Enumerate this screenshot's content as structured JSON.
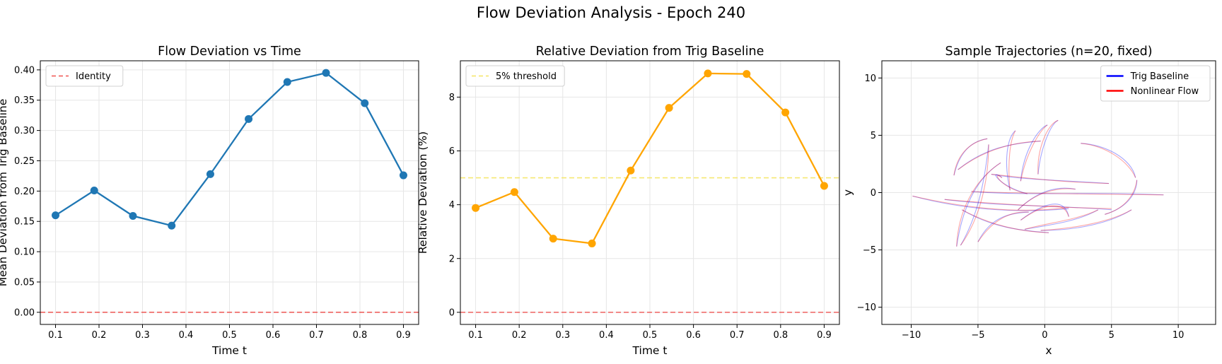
{
  "figure": {
    "suptitle": "Flow Deviation Analysis - Epoch 240"
  },
  "chart_data": [
    {
      "type": "line",
      "title": "Flow Deviation vs Time",
      "xlabel": "Time t",
      "ylabel": "Mean Deviation from Trig Baseline",
      "xlim": [
        0.065,
        0.935
      ],
      "ylim": [
        -0.02,
        0.415
      ],
      "xticks": [
        0.1,
        0.2,
        0.3,
        0.4,
        0.5,
        0.6,
        0.7,
        0.8,
        0.9
      ],
      "xtick_labels": [
        "0.1",
        "0.2",
        "0.3",
        "0.4",
        "0.5",
        "0.6",
        "0.7",
        "0.8",
        "0.9"
      ],
      "yticks": [
        0.0,
        0.05,
        0.1,
        0.15,
        0.2,
        0.25,
        0.3,
        0.35,
        0.4
      ],
      "ytick_labels": [
        "0.00",
        "0.05",
        "0.10",
        "0.15",
        "0.20",
        "0.25",
        "0.30",
        "0.35",
        "0.40"
      ],
      "grid": true,
      "legend": {
        "position": "upper-left",
        "entries": [
          {
            "label": "Identity",
            "style": "dashed",
            "color": "#ef5350"
          }
        ]
      },
      "series": [
        {
          "color": "#1f77b4",
          "marker": "circle",
          "x": [
            0.1,
            0.189,
            0.278,
            0.367,
            0.456,
            0.544,
            0.633,
            0.722,
            0.811,
            0.9
          ],
          "y": [
            0.16,
            0.201,
            0.159,
            0.143,
            0.228,
            0.319,
            0.38,
            0.395,
            0.345,
            0.226
          ]
        }
      ],
      "hlines": [
        {
          "y": 0,
          "color": "#ef5350",
          "style": "dashed"
        }
      ]
    },
    {
      "type": "line",
      "title": "Relative Deviation from Trig Baseline",
      "xlabel": "Time t",
      "ylabel": "Relative Deviation (%)",
      "xlim": [
        0.065,
        0.935
      ],
      "ylim": [
        -0.45,
        9.35
      ],
      "xticks": [
        0.1,
        0.2,
        0.3,
        0.4,
        0.5,
        0.6,
        0.7,
        0.8,
        0.9
      ],
      "xtick_labels": [
        "0.1",
        "0.2",
        "0.3",
        "0.4",
        "0.5",
        "0.6",
        "0.7",
        "0.8",
        "0.9"
      ],
      "yticks": [
        0,
        2,
        4,
        6,
        8
      ],
      "ytick_labels": [
        "0",
        "2",
        "4",
        "6",
        "8"
      ],
      "grid": true,
      "legend": {
        "position": "upper-left",
        "entries": [
          {
            "label": "5% threshold",
            "style": "dashed",
            "color": "#f5e663"
          }
        ]
      },
      "series": [
        {
          "color": "#ffa500",
          "marker": "circle",
          "x": [
            0.1,
            0.189,
            0.278,
            0.367,
            0.456,
            0.544,
            0.633,
            0.722,
            0.811,
            0.9
          ],
          "y": [
            3.88,
            4.47,
            2.74,
            2.56,
            5.27,
            7.6,
            8.88,
            8.86,
            7.43,
            4.7
          ]
        }
      ],
      "hlines": [
        {
          "y": 5,
          "color": "#f5e663",
          "style": "dashed"
        },
        {
          "y": 0,
          "color": "#ef5350",
          "style": "dashed"
        }
      ]
    },
    {
      "type": "line",
      "title": "Sample Trajectories (n=20, fixed)",
      "xlabel": "x",
      "ylabel": "y",
      "xlim": [
        -12.2,
        12.8
      ],
      "ylim": [
        -11.5,
        11.5
      ],
      "xticks": [
        -10,
        -5,
        0,
        5,
        10
      ],
      "xtick_labels": [
        "−10",
        "−5",
        "0",
        "5",
        "10"
      ],
      "yticks": [
        -10,
        -5,
        0,
        5,
        10
      ],
      "ytick_labels": [
        "−10",
        "−5",
        "0",
        "5",
        "10"
      ],
      "grid": true,
      "legend": {
        "position": "upper-right",
        "entries": [
          {
            "label": "Trig Baseline",
            "style": "solid",
            "color": "#0000ff"
          },
          {
            "label": "Nonlinear Flow",
            "style": "solid",
            "color": "#ff0000"
          }
        ]
      },
      "trajectories": [
        {
          "trig": [
            [
              -9.9,
              -0.3
            ],
            [
              -6,
              -1.5
            ],
            [
              -2,
              -1.8
            ],
            [
              1.8,
              -1.4
            ]
          ],
          "flow": [
            [
              -9.9,
              -0.3
            ],
            [
              -6.1,
              -1.3
            ],
            [
              -2.1,
              -1.9
            ],
            [
              1.8,
              -1.3
            ]
          ]
        },
        {
          "trig": [
            [
              -7.5,
              -0.6
            ],
            [
              -3.5,
              -1.2
            ],
            [
              1,
              -1.1
            ],
            [
              5,
              -1.5
            ]
          ],
          "flow": [
            [
              -7.5,
              -0.6
            ],
            [
              -3.6,
              -1.0
            ],
            [
              1,
              -1.3
            ],
            [
              5,
              -1.4
            ]
          ]
        },
        {
          "trig": [
            [
              -5.5,
              0.1
            ],
            [
              -1.5,
              -0.3
            ],
            [
              3,
              0.1
            ],
            [
              8.9,
              -0.2
            ]
          ],
          "flow": [
            [
              -5.5,
              0.1
            ],
            [
              -1.6,
              -0.1
            ],
            [
              3,
              -0.1
            ],
            [
              8.9,
              -0.2
            ]
          ]
        },
        {
          "trig": [
            [
              -6.6,
              -4.7
            ],
            [
              -6.2,
              -1.5
            ],
            [
              -5.2,
              1.2
            ],
            [
              -3.3,
              2.6
            ]
          ],
          "flow": [
            [
              -6.6,
              -4.7
            ],
            [
              -6.5,
              -1.8
            ],
            [
              -5.4,
              1.0
            ],
            [
              -3.3,
              2.6
            ]
          ]
        },
        {
          "trig": [
            [
              -6.3,
              -4.6
            ],
            [
              -5,
              -2
            ],
            [
              -4.5,
              1
            ],
            [
              -4.2,
              4.2
            ]
          ],
          "flow": [
            [
              -6.3,
              -4.6
            ],
            [
              -4.8,
              -2.2
            ],
            [
              -4.2,
              1.2
            ],
            [
              -4.2,
              4.2
            ]
          ]
        },
        {
          "trig": [
            [
              -6.8,
              1.5
            ],
            [
              -6.4,
              3.5
            ],
            [
              -5.5,
              4.5
            ],
            [
              -4.3,
              4.7
            ]
          ],
          "flow": [
            [
              -6.8,
              1.5
            ],
            [
              -6.6,
              3.2
            ],
            [
              -5.7,
              4.4
            ],
            [
              -4.3,
              4.7
            ]
          ]
        },
        {
          "trig": [
            [
              -2.6,
              0.2
            ],
            [
              -3.1,
              2.8
            ],
            [
              -2.8,
              4.8
            ],
            [
              -2.2,
              5.4
            ]
          ],
          "flow": [
            [
              -2.6,
              0.2
            ],
            [
              -2.8,
              2.6
            ],
            [
              -2.6,
              4.6
            ],
            [
              -2.2,
              5.4
            ]
          ]
        },
        {
          "trig": [
            [
              -1.8,
              1
            ],
            [
              -1.6,
              3.6
            ],
            [
              -0.5,
              5.6
            ],
            [
              0.2,
              5.9
            ]
          ],
          "flow": [
            [
              -1.8,
              1
            ],
            [
              -1.4,
              3.4
            ],
            [
              -0.4,
              5.4
            ],
            [
              0.2,
              5.9
            ]
          ]
        },
        {
          "trig": [
            [
              -0.5,
              1.6
            ],
            [
              -0.3,
              4
            ],
            [
              0.5,
              6.1
            ],
            [
              1,
              6.3
            ]
          ],
          "flow": [
            [
              -0.5,
              1.6
            ],
            [
              -0.6,
              3.8
            ],
            [
              0.2,
              6.0
            ],
            [
              1,
              6.3
            ]
          ]
        },
        {
          "trig": [
            [
              -6.5,
              2.0
            ],
            [
              -4.5,
              3.9
            ],
            [
              -2.5,
              4.3
            ],
            [
              -0.3,
              4.5
            ]
          ],
          "flow": [
            [
              -6.5,
              2.0
            ],
            [
              -4.6,
              3.7
            ],
            [
              -2.5,
              4.4
            ],
            [
              -0.3,
              4.5
            ]
          ]
        },
        {
          "trig": [
            [
              2.7,
              4.3
            ],
            [
              4.5,
              4.2
            ],
            [
              6.5,
              3
            ],
            [
              6.8,
              1.3
            ]
          ],
          "flow": [
            [
              2.7,
              4.3
            ],
            [
              4.6,
              4.1
            ],
            [
              6.3,
              2.7
            ],
            [
              6.8,
              1.3
            ]
          ]
        },
        {
          "trig": [
            [
              4.5,
              -1.9
            ],
            [
              6.5,
              -1.2
            ],
            [
              6.9,
              0.3
            ],
            [
              6.9,
              1.1
            ]
          ],
          "flow": [
            [
              4.5,
              -1.9
            ],
            [
              6.3,
              -1.3
            ],
            [
              6.8,
              0.2
            ],
            [
              6.9,
              1.1
            ]
          ]
        },
        {
          "trig": [
            [
              -1.5,
              -3.2
            ],
            [
              0.5,
              -2.8
            ],
            [
              2.5,
              -2.5
            ],
            [
              4,
              -1.5
            ]
          ],
          "flow": [
            [
              -1.5,
              -3.2
            ],
            [
              0.4,
              -2.6
            ],
            [
              2.4,
              -2.4
            ],
            [
              4,
              -1.5
            ]
          ]
        },
        {
          "trig": [
            [
              -0.3,
              -3.3
            ],
            [
              2.5,
              -3.3
            ],
            [
              5,
              -2.6
            ],
            [
              6.5,
              -1.5
            ]
          ],
          "flow": [
            [
              -0.3,
              -3.3
            ],
            [
              2.5,
              -3.1
            ],
            [
              5,
              -2.5
            ],
            [
              6.5,
              -1.5
            ]
          ]
        },
        {
          "trig": [
            [
              -6.2,
              -1.5
            ],
            [
              -4,
              -3
            ],
            [
              -2,
              -3.3
            ],
            [
              0.3,
              -3.5
            ]
          ],
          "flow": [
            [
              -6.2,
              -1.5
            ],
            [
              -4.1,
              -2.8
            ],
            [
              -2,
              -3.4
            ],
            [
              0.3,
              -3.5
            ]
          ]
        },
        {
          "trig": [
            [
              -5,
              -4.3
            ],
            [
              -4,
              -2
            ],
            [
              -2.5,
              -1.8
            ],
            [
              -1.2,
              -1.7
            ]
          ],
          "flow": [
            [
              -5,
              -4.3
            ],
            [
              -3.8,
              -2.2
            ],
            [
              -2.4,
              -1.6
            ],
            [
              -1.2,
              -1.7
            ]
          ]
        },
        {
          "trig": [
            [
              -2,
              -1.5
            ],
            [
              -0.5,
              0.2
            ],
            [
              1,
              0.6
            ],
            [
              2.3,
              0.3
            ]
          ],
          "flow": [
            [
              -2,
              -1.5
            ],
            [
              -0.7,
              0
            ],
            [
              0.9,
              0.5
            ],
            [
              2.3,
              0.3
            ]
          ]
        },
        {
          "trig": [
            [
              -4,
              1.6
            ],
            [
              -1.5,
              1.1
            ],
            [
              1,
              1.1
            ],
            [
              4.8,
              0.8
            ]
          ],
          "flow": [
            [
              -4,
              1.6
            ],
            [
              -1.4,
              1.3
            ],
            [
              1.1,
              0.9
            ],
            [
              4.8,
              0.8
            ]
          ]
        },
        {
          "trig": [
            [
              -3.2,
              1.3
            ],
            [
              -4.2,
              2.2
            ],
            [
              -3.6,
              0.6
            ],
            [
              -1.3,
              -0.1
            ]
          ],
          "flow": [
            [
              -3.2,
              1.3
            ],
            [
              -4.0,
              2.0
            ],
            [
              -3.4,
              0.4
            ],
            [
              -1.3,
              -0.1
            ]
          ]
        },
        {
          "trig": [
            [
              -1.8,
              -2.4
            ],
            [
              0,
              -0.8
            ],
            [
              1.5,
              -0.4
            ],
            [
              1.8,
              -2.1
            ]
          ],
          "flow": [
            [
              -1.8,
              -2.4
            ],
            [
              -0.1,
              -1.0
            ],
            [
              1.4,
              -0.6
            ],
            [
              1.8,
              -2.1
            ]
          ]
        }
      ]
    }
  ]
}
